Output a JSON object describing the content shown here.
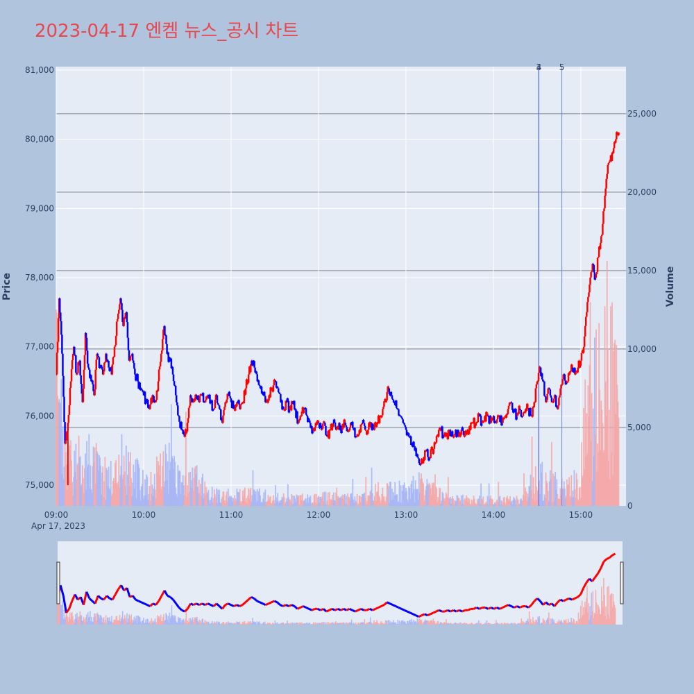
{
  "title": "2023-04-17 엔켐 뉴스_공시 차트",
  "colors": {
    "up": "#ff0000",
    "down": "#0000ff",
    "up_volume": "#f4a6a6",
    "down_volume": "#a6b4f4",
    "plot_bg": "#e5ecf6",
    "page_bg": "#b0c4de",
    "news_line": "#6a7ff0"
  },
  "chart_data": {
    "type": "candlestick",
    "title": "2023-04-17 엔켐 뉴스_공시 차트",
    "xlabel": "",
    "date_label": "Apr 17, 2023",
    "ylabel": "Price",
    "y2label": "Volume",
    "x_ticks": [
      "09:00",
      "10:00",
      "11:00",
      "12:00",
      "13:00",
      "14:00",
      "15:00"
    ],
    "y_ticks": [
      "75,000",
      "76,000",
      "77,000",
      "78,000",
      "79,000",
      "80,000",
      "81,000"
    ],
    "y2_ticks": [
      "0",
      "5,000",
      "10,000",
      "15,000",
      "20,000",
      "25,000"
    ],
    "ylim": [
      74700,
      81050
    ],
    "y2lim": [
      0,
      28000
    ],
    "xlim": [
      "09:00",
      "15:31"
    ],
    "grid": true,
    "news_markers": [
      {
        "label": "3",
        "time": "14:31"
      },
      {
        "label": "4",
        "time": "14:31"
      },
      {
        "label": "5",
        "time": "14:47"
      }
    ],
    "price_path": [
      [
        "09:00",
        76600
      ],
      [
        "09:02",
        77700
      ],
      [
        "09:04",
        76900
      ],
      [
        "09:06",
        75600
      ],
      [
        "09:08",
        75900
      ],
      [
        "09:10",
        76500
      ],
      [
        "09:12",
        77000
      ],
      [
        "09:14",
        76600
      ],
      [
        "09:16",
        76800
      ],
      [
        "09:18",
        76200
      ],
      [
        "09:20",
        77200
      ],
      [
        "09:22",
        76700
      ],
      [
        "09:24",
        76500
      ],
      [
        "09:26",
        76300
      ],
      [
        "09:28",
        76900
      ],
      [
        "09:30",
        76700
      ],
      [
        "09:32",
        76600
      ],
      [
        "09:34",
        76900
      ],
      [
        "09:36",
        76700
      ],
      [
        "09:38",
        76600
      ],
      [
        "09:40",
        77000
      ],
      [
        "09:42",
        77400
      ],
      [
        "09:44",
        77700
      ],
      [
        "09:46",
        77300
      ],
      [
        "09:48",
        77500
      ],
      [
        "09:50",
        76800
      ],
      [
        "09:52",
        76900
      ],
      [
        "09:54",
        76600
      ],
      [
        "09:56",
        76500
      ],
      [
        "09:58",
        76400
      ],
      [
        "10:00",
        76300
      ],
      [
        "10:02",
        76200
      ],
      [
        "10:04",
        76100
      ],
      [
        "10:06",
        76300
      ],
      [
        "10:08",
        76200
      ],
      [
        "10:10",
        76500
      ],
      [
        "10:12",
        76900
      ],
      [
        "10:14",
        77300
      ],
      [
        "10:16",
        76900
      ],
      [
        "10:18",
        76800
      ],
      [
        "10:20",
        76600
      ],
      [
        "10:22",
        76300
      ],
      [
        "10:24",
        76000
      ],
      [
        "10:26",
        75800
      ],
      [
        "10:28",
        75700
      ],
      [
        "10:30",
        75900
      ],
      [
        "10:32",
        76300
      ],
      [
        "10:34",
        76200
      ],
      [
        "10:36",
        76300
      ],
      [
        "10:38",
        76200
      ],
      [
        "10:40",
        76300
      ],
      [
        "10:42",
        76200
      ],
      [
        "10:44",
        76300
      ],
      [
        "10:46",
        76200
      ],
      [
        "10:48",
        76100
      ],
      [
        "10:50",
        76300
      ],
      [
        "10:52",
        76100
      ],
      [
        "10:54",
        75900
      ],
      [
        "10:56",
        76200
      ],
      [
        "10:58",
        76300
      ],
      [
        "11:00",
        76200
      ],
      [
        "11:02",
        76100
      ],
      [
        "11:04",
        76200
      ],
      [
        "11:06",
        76100
      ],
      [
        "11:08",
        76200
      ],
      [
        "11:10",
        76400
      ],
      [
        "11:12",
        76600
      ],
      [
        "11:14",
        76800
      ],
      [
        "11:16",
        76700
      ],
      [
        "11:18",
        76500
      ],
      [
        "11:20",
        76400
      ],
      [
        "11:22",
        76300
      ],
      [
        "11:24",
        76200
      ],
      [
        "11:26",
        76300
      ],
      [
        "11:28",
        76400
      ],
      [
        "11:30",
        76500
      ],
      [
        "11:32",
        76400
      ],
      [
        "11:34",
        76200
      ],
      [
        "11:36",
        76100
      ],
      [
        "11:38",
        76200
      ],
      [
        "11:40",
        76100
      ],
      [
        "11:42",
        76200
      ],
      [
        "11:44",
        76100
      ],
      [
        "11:46",
        75900
      ],
      [
        "11:48",
        76000
      ],
      [
        "11:50",
        76100
      ],
      [
        "11:52",
        76000
      ],
      [
        "11:54",
        75900
      ],
      [
        "11:56",
        75800
      ],
      [
        "11:58",
        75900
      ],
      [
        "12:00",
        75900
      ],
      [
        "12:02",
        75800
      ],
      [
        "12:04",
        75900
      ],
      [
        "12:06",
        75700
      ],
      [
        "12:08",
        75800
      ],
      [
        "12:10",
        75900
      ],
      [
        "12:12",
        75800
      ],
      [
        "12:14",
        75900
      ],
      [
        "12:16",
        75800
      ],
      [
        "12:18",
        75900
      ],
      [
        "12:20",
        75800
      ],
      [
        "12:22",
        75900
      ],
      [
        "12:24",
        75800
      ],
      [
        "12:26",
        75700
      ],
      [
        "12:28",
        75800
      ],
      [
        "12:30",
        75900
      ],
      [
        "12:32",
        75800
      ],
      [
        "12:34",
        75800
      ],
      [
        "12:36",
        75900
      ],
      [
        "12:38",
        75800
      ],
      [
        "12:40",
        75900
      ],
      [
        "12:42",
        76000
      ],
      [
        "12:44",
        76100
      ],
      [
        "12:46",
        76200
      ],
      [
        "12:48",
        76400
      ],
      [
        "12:50",
        76300
      ],
      [
        "12:52",
        76200
      ],
      [
        "12:54",
        76100
      ],
      [
        "12:56",
        76000
      ],
      [
        "12:58",
        75900
      ],
      [
        "13:00",
        75800
      ],
      [
        "13:02",
        75700
      ],
      [
        "13:04",
        75600
      ],
      [
        "13:06",
        75500
      ],
      [
        "13:08",
        75400
      ],
      [
        "13:10",
        75300
      ],
      [
        "13:12",
        75400
      ],
      [
        "13:14",
        75500
      ],
      [
        "13:16",
        75400
      ],
      [
        "13:18",
        75500
      ],
      [
        "13:20",
        75600
      ],
      [
        "13:22",
        75700
      ],
      [
        "13:24",
        75800
      ],
      [
        "13:26",
        75700
      ],
      [
        "13:28",
        75700
      ],
      [
        "13:30",
        75800
      ],
      [
        "13:32",
        75700
      ],
      [
        "13:34",
        75800
      ],
      [
        "13:36",
        75700
      ],
      [
        "13:38",
        75800
      ],
      [
        "13:40",
        75700
      ],
      [
        "13:42",
        75800
      ],
      [
        "13:44",
        75800
      ],
      [
        "13:46",
        75900
      ],
      [
        "13:48",
        75900
      ],
      [
        "13:50",
        76000
      ],
      [
        "13:52",
        75900
      ],
      [
        "13:54",
        76000
      ],
      [
        "13:56",
        76000
      ],
      [
        "13:58",
        75900
      ],
      [
        "14:00",
        76000
      ],
      [
        "14:02",
        75900
      ],
      [
        "14:04",
        76000
      ],
      [
        "14:06",
        75900
      ],
      [
        "14:08",
        76000
      ],
      [
        "14:10",
        76100
      ],
      [
        "14:12",
        76200
      ],
      [
        "14:14",
        76100
      ],
      [
        "14:16",
        76000
      ],
      [
        "14:18",
        76100
      ],
      [
        "14:20",
        76000
      ],
      [
        "14:22",
        76100
      ],
      [
        "14:24",
        76100
      ],
      [
        "14:26",
        76000
      ],
      [
        "14:28",
        76200
      ],
      [
        "14:30",
        76500
      ],
      [
        "14:32",
        76700
      ],
      [
        "14:34",
        76500
      ],
      [
        "14:36",
        76200
      ],
      [
        "14:38",
        76400
      ],
      [
        "14:40",
        76200
      ],
      [
        "14:42",
        76300
      ],
      [
        "14:44",
        76100
      ],
      [
        "14:46",
        76400
      ],
      [
        "14:48",
        76600
      ],
      [
        "14:50",
        76500
      ],
      [
        "14:52",
        76600
      ],
      [
        "14:54",
        76700
      ],
      [
        "14:56",
        76600
      ],
      [
        "14:58",
        76700
      ],
      [
        "15:00",
        76800
      ],
      [
        "15:02",
        77000
      ],
      [
        "15:04",
        77500
      ],
      [
        "15:06",
        77900
      ],
      [
        "15:08",
        78200
      ],
      [
        "15:10",
        78000
      ],
      [
        "15:12",
        78300
      ],
      [
        "15:14",
        78600
      ],
      [
        "15:16",
        79000
      ],
      [
        "15:18",
        79500
      ],
      [
        "15:20",
        79700
      ],
      [
        "15:22",
        79800
      ],
      [
        "15:24",
        80000
      ],
      [
        "15:26",
        80100
      ]
    ],
    "volume_profile": [
      [
        "09:00",
        9000
      ],
      [
        "09:02",
        6000
      ],
      [
        "09:05",
        4500
      ],
      [
        "09:08",
        3000
      ],
      [
        "09:12",
        2500
      ],
      [
        "09:20",
        3500
      ],
      [
        "09:30",
        2500
      ],
      [
        "09:40",
        2000
      ],
      [
        "09:45",
        3500
      ],
      [
        "09:55",
        2000
      ],
      [
        "10:05",
        1500
      ],
      [
        "10:15",
        3000
      ],
      [
        "10:25",
        1500
      ],
      [
        "10:35",
        2000
      ],
      [
        "10:45",
        800
      ],
      [
        "11:00",
        700
      ],
      [
        "11:15",
        800
      ],
      [
        "11:30",
        600
      ],
      [
        "11:45",
        500
      ],
      [
        "12:00",
        600
      ],
      [
        "12:30",
        500
      ],
      [
        "12:45",
        1200
      ],
      [
        "13:00",
        1000
      ],
      [
        "13:10",
        1500
      ],
      [
        "13:30",
        500
      ],
      [
        "14:00",
        400
      ],
      [
        "14:20",
        500
      ],
      [
        "14:30",
        2000
      ],
      [
        "14:40",
        1500
      ],
      [
        "14:50",
        1200
      ],
      [
        "15:00",
        2000
      ],
      [
        "15:05",
        9000
      ],
      [
        "15:10",
        7000
      ],
      [
        "15:15",
        12000
      ],
      [
        "15:20",
        9000
      ],
      [
        "15:26",
        7000
      ]
    ]
  }
}
